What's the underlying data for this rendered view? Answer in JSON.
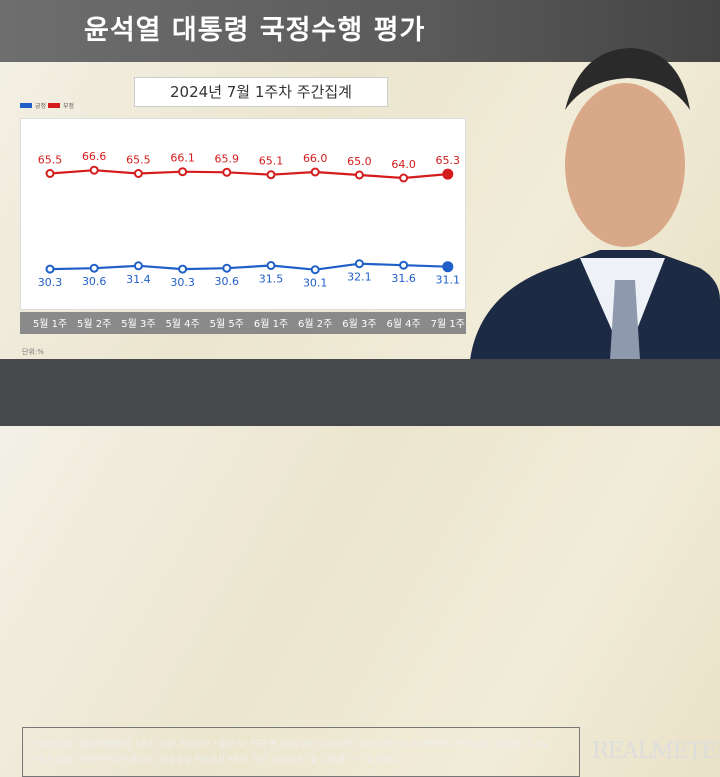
{
  "title": "윤석열 대통령 국정수행 평가",
  "subtitle": "2024년 7월 1주차 주간집계",
  "unit": "단위:%",
  "colors": {
    "positive": "#1f5fc8",
    "negative": "#d41c1c"
  },
  "chart_data": {
    "type": "line",
    "categories": [
      "5월 1주",
      "5월 2주",
      "5월 3주",
      "5월 4주",
      "5월 5주",
      "6월 1주",
      "6월 2주",
      "6월 3주",
      "6월 4주",
      "7월 1주"
    ],
    "series": [
      {
        "name": "부정",
        "values": [
          65.5,
          66.6,
          65.5,
          66.1,
          65.9,
          65.1,
          66.0,
          65.0,
          64.0,
          65.3
        ]
      },
      {
        "name": "긍정",
        "values": [
          30.3,
          30.6,
          31.4,
          30.3,
          30.6,
          31.5,
          30.1,
          32.1,
          31.6,
          31.1
        ]
      }
    ],
    "legend": "top-left"
  },
  "footer": {
    "line1": "•의뢰 기관: 에너지경제신문 •조사 기관: 리얼미터 •표본 수: 전국 만 18세 이상 2,505명 •표본오차: ±2.0%P(95% 신뢰수준) •응답률: 3.1%",
    "line2": "•조사 방법: 무선(97%)·유선(3%) 자동응답 전화조사 •조사 기간: 2024년 7월 1일(월) ~ 7월 5일(금)"
  },
  "logo": "REALMETER"
}
